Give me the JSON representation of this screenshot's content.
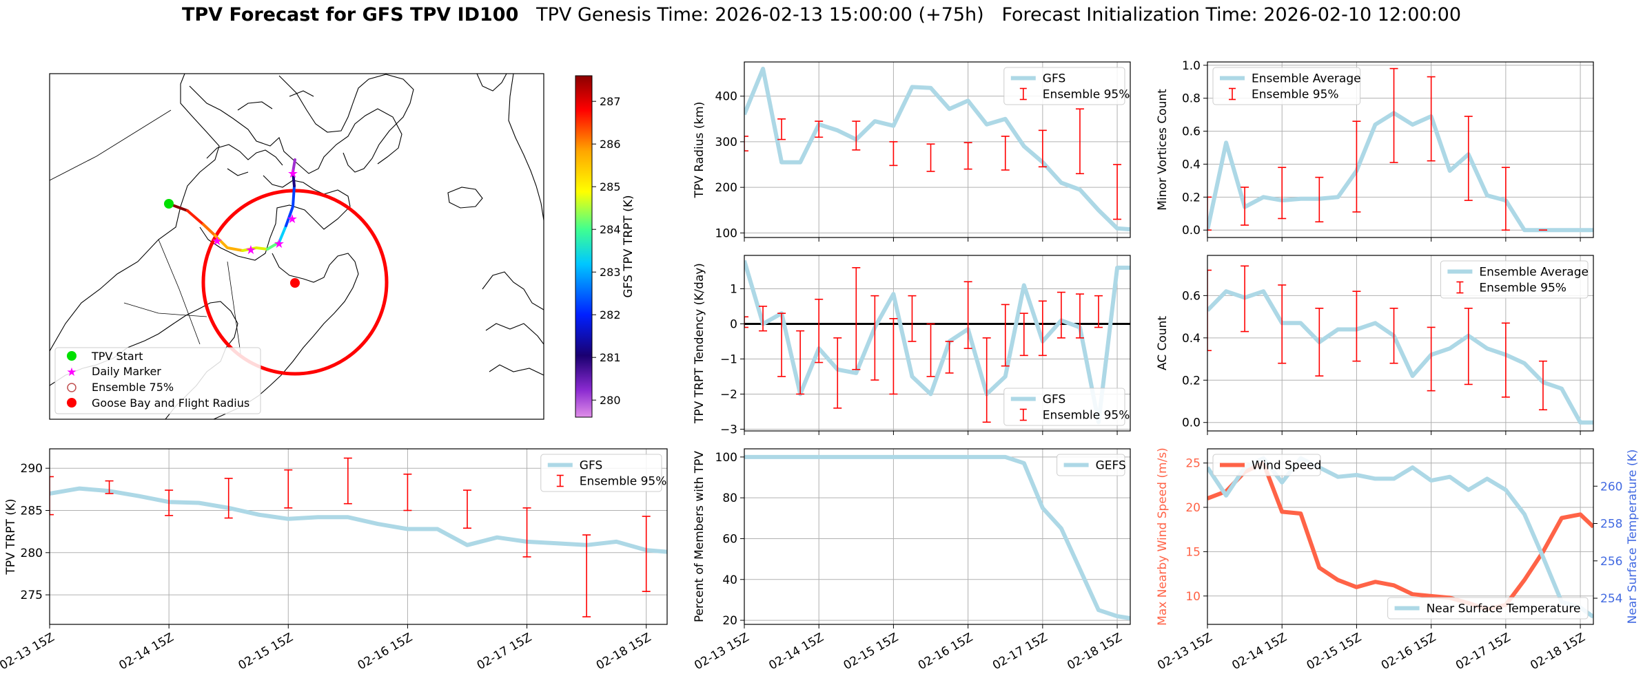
{
  "figure": {
    "title_bold": "TPV Forecast for GFS TPV ID100",
    "title_rest": "   TPV Genesis Time: 2026-02-13 15:00:00 (+75h)   Forecast Initialization Time: 2026-02-10 12:00:00"
  },
  "colors": {
    "gfs_line": "#add8e6",
    "error_bar": "#ff0000",
    "wind": "#ff6347",
    "temp_axis": "#4169e1",
    "grid": "#b0b0b0",
    "circle": "#ff0000"
  },
  "map": {
    "colorbar": {
      "label": "GFS TPV TRPT (K)",
      "ticks": [
        "287",
        "286",
        "285",
        "284",
        "283",
        "282",
        "281",
        "280"
      ],
      "tick_values": [
        287,
        286,
        285,
        284,
        283,
        282,
        281,
        280
      ],
      "vmin": 279.6,
      "vmax": 287.6
    },
    "legend": [
      {
        "label": "TPV Start",
        "symbol": "green-dot"
      },
      {
        "label": "Daily Marker",
        "symbol": "magenta-star"
      },
      {
        "label": "Ensemble 75%",
        "symbol": "hollow-circle"
      },
      {
        "label": "Goose Bay and Flight Radius",
        "symbol": "red-dot"
      }
    ]
  },
  "chart_data": [
    {
      "id": "trpt",
      "type": "line",
      "ylabel": "TPV TRPT (K)",
      "ylim": [
        271.5,
        292.3
      ],
      "yticks": [
        275,
        280,
        285,
        290
      ],
      "xlim": [
        0,
        20.7
      ],
      "xticks": [
        0,
        4,
        8,
        12,
        16,
        20
      ],
      "xticklabels": [
        "02-13 15Z",
        "02-14 15Z",
        "02-15 15Z",
        "02-16 15Z",
        "02-17 15Z",
        "02-18 15Z"
      ],
      "series": [
        {
          "name": "GFS",
          "x": [
            0,
            1,
            2,
            3,
            4,
            5,
            6,
            7,
            8,
            9,
            10,
            11,
            12,
            13,
            14,
            15,
            16,
            17,
            18,
            19,
            20,
            20.7
          ],
          "values": [
            287.0,
            287.6,
            287.3,
            286.7,
            286.0,
            285.9,
            285.3,
            284.5,
            284.0,
            284.2,
            284.2,
            283.4,
            282.8,
            282.8,
            280.9,
            281.8,
            281.3,
            281.1,
            280.9,
            281.3,
            280.3,
            280.1
          ]
        }
      ],
      "errorbars": {
        "name": "Ensemble 95%",
        "x": [
          0,
          2,
          4,
          6,
          8,
          10,
          12,
          14,
          16,
          18,
          20
        ],
        "low": [
          284.5,
          287.0,
          284.4,
          284.1,
          285.3,
          285.8,
          285.0,
          282.9,
          279.5,
          272.4,
          275.4
        ],
        "high": [
          289.0,
          288.5,
          287.4,
          288.8,
          289.8,
          291.2,
          289.3,
          287.4,
          285.3,
          282.1,
          284.3
        ]
      },
      "legend": [
        "GFS",
        "Ensemble 95%"
      ],
      "legend_position": "top-right"
    },
    {
      "id": "radius",
      "type": "line",
      "ylabel": "TPV Radius (km)",
      "ylim": [
        90,
        475
      ],
      "yticks": [
        100,
        200,
        300,
        400
      ],
      "xlim": [
        0,
        20.7
      ],
      "xticks": [
        0,
        4,
        8,
        12,
        16,
        20
      ],
      "xticklabels": [
        "02-13 15Z",
        "02-14 15Z",
        "02-15 15Z",
        "02-16 15Z",
        "02-17 15Z",
        "02-18 15Z"
      ],
      "series": [
        {
          "name": "GFS",
          "x": [
            0,
            1,
            2,
            3,
            4,
            5,
            6,
            7,
            8,
            9,
            10,
            11,
            12,
            13,
            14,
            15,
            16,
            17,
            18,
            19,
            20,
            20.7
          ],
          "values": [
            360,
            460,
            255,
            255,
            338,
            325,
            305,
            345,
            335,
            420,
            418,
            372,
            390,
            338,
            350,
            290,
            255,
            210,
            195,
            150,
            110,
            108
          ]
        }
      ],
      "errorbars": {
        "name": "Ensemble 95%",
        "x": [
          0,
          2,
          4,
          6,
          8,
          10,
          12,
          14,
          16,
          18,
          20
        ],
        "low": [
          280,
          305,
          310,
          282,
          248,
          235,
          240,
          238,
          245,
          230,
          130
        ],
        "high": [
          312,
          350,
          345,
          345,
          300,
          295,
          298,
          312,
          325,
          372,
          250
        ]
      },
      "legend": [
        "GFS",
        "Ensemble 95%"
      ],
      "legend_position": "top-right"
    },
    {
      "id": "tendency",
      "type": "line",
      "ylabel": "TPV TRPT Tendency (K/day)",
      "ylim": [
        -3.05,
        1.95
      ],
      "yticks": [
        -3,
        -2,
        -1,
        0,
        1
      ],
      "zero_line": true,
      "xlim": [
        0,
        20.7
      ],
      "xticks": [
        0,
        4,
        8,
        12,
        16,
        20
      ],
      "xticklabels": [
        "02-13 15Z",
        "02-14 15Z",
        "02-15 15Z",
        "02-16 15Z",
        "02-17 15Z",
        "02-18 15Z"
      ],
      "series": [
        {
          "name": "GFS",
          "x": [
            0,
            1,
            2,
            3,
            4,
            5,
            6,
            7,
            8,
            9,
            10,
            11,
            12,
            13,
            14,
            15,
            16,
            17,
            18,
            19,
            20,
            20.7
          ],
          "values": [
            1.8,
            0.0,
            0.3,
            -2.0,
            -0.7,
            -1.3,
            -1.4,
            -0.1,
            0.85,
            -1.5,
            -2.0,
            -0.5,
            -0.15,
            -2.0,
            -1.5,
            1.1,
            -0.5,
            0.1,
            -0.1,
            -2.8,
            1.6,
            1.6
          ]
        }
      ],
      "errorbars": {
        "name": "Ensemble 95%",
        "x": [
          0,
          1,
          2,
          3,
          4,
          5,
          6,
          7,
          8,
          9,
          10,
          11,
          12,
          13,
          14,
          15,
          16,
          17,
          18,
          19
        ],
        "low": [
          -0.1,
          -0.2,
          -1.5,
          -2.0,
          -1.1,
          -2.4,
          -1.3,
          -1.6,
          -2.0,
          -0.5,
          -1.5,
          -1.4,
          -0.7,
          -2.8,
          -1.2,
          -0.9,
          -0.9,
          -0.4,
          -0.4,
          -0.1
        ],
        "high": [
          0.2,
          0.5,
          0.3,
          -0.2,
          0.7,
          -0.4,
          1.6,
          0.8,
          0.15,
          0.8,
          0.0,
          -0.5,
          1.2,
          -0.4,
          0.55,
          0.3,
          0.65,
          0.9,
          0.85,
          0.8
        ]
      },
      "legend": [
        "GFS",
        "Ensemble 95%"
      ],
      "legend_position": "bottom-right"
    },
    {
      "id": "members",
      "type": "line",
      "ylabel": "Percent of Members with TPV",
      "ylim": [
        18,
        104
      ],
      "yticks": [
        20,
        40,
        60,
        80,
        100
      ],
      "xlim": [
        0,
        20.7
      ],
      "xticks": [
        0,
        4,
        8,
        12,
        16,
        20
      ],
      "xticklabels": [
        "02-13 15Z",
        "02-14 15Z",
        "02-15 15Z",
        "02-16 15Z",
        "02-17 15Z",
        "02-18 15Z"
      ],
      "series": [
        {
          "name": "GEFS",
          "x": [
            0,
            1,
            2,
            3,
            4,
            5,
            6,
            7,
            8,
            9,
            10,
            11,
            12,
            13,
            14,
            15,
            16,
            17,
            18,
            19,
            20,
            20.7
          ],
          "values": [
            100,
            100,
            100,
            100,
            100,
            100,
            100,
            100,
            100,
            100,
            100,
            100,
            100,
            100,
            100,
            97,
            75,
            65,
            45,
            25,
            22,
            21
          ]
        }
      ],
      "legend": [
        "GEFS"
      ],
      "legend_position": "top-right"
    },
    {
      "id": "minor_vortices",
      "type": "line",
      "ylabel": "Minor Vortices Count",
      "ylim": [
        -0.045,
        1.02
      ],
      "yticks": [
        0.0,
        0.2,
        0.4,
        0.6,
        0.8,
        1.0
      ],
      "xlim": [
        0,
        20.7
      ],
      "xticks": [
        0,
        4,
        8,
        12,
        16,
        20
      ],
      "xticklabels": [
        "02-13 15Z",
        "02-14 15Z",
        "02-15 15Z",
        "02-16 15Z",
        "02-17 15Z",
        "02-18 15Z"
      ],
      "series": [
        {
          "name": "Ensemble Average",
          "x": [
            0,
            1,
            2,
            3,
            4,
            5,
            6,
            7,
            8,
            9,
            10,
            11,
            12,
            13,
            14,
            15,
            16,
            17,
            18,
            19,
            20,
            20.7
          ],
          "values": [
            0.0,
            0.53,
            0.14,
            0.2,
            0.18,
            0.19,
            0.19,
            0.2,
            0.36,
            0.64,
            0.71,
            0.64,
            0.69,
            0.36,
            0.46,
            0.21,
            0.18,
            0.0,
            0.0,
            0.0,
            0.0,
            0.0
          ]
        }
      ],
      "errorbars": {
        "name": "Ensemble 95%",
        "x": [
          0,
          2,
          4,
          6,
          8,
          10,
          12,
          14,
          16,
          18
        ],
        "low": [
          0.0,
          0.03,
          0.07,
          0.05,
          0.11,
          0.41,
          0.42,
          0.18,
          0.0,
          0.0
        ],
        "high": [
          0.2,
          0.26,
          0.38,
          0.32,
          0.66,
          0.98,
          0.93,
          0.69,
          0.38,
          0.0
        ]
      },
      "legend": [
        "Ensemble Average",
        "Ensemble 95%"
      ],
      "legend_position": "top-left"
    },
    {
      "id": "ac_count",
      "type": "line",
      "ylabel": "AC Count",
      "ylim": [
        -0.04,
        0.79
      ],
      "yticks": [
        0.0,
        0.2,
        0.4,
        0.6
      ],
      "xlim": [
        0,
        20.7
      ],
      "xticks": [
        0,
        4,
        8,
        12,
        16,
        20
      ],
      "xticklabels": [
        "02-13 15Z",
        "02-14 15Z",
        "02-15 15Z",
        "02-16 15Z",
        "02-17 15Z",
        "02-18 15Z"
      ],
      "series": [
        {
          "name": "Ensemble Average",
          "x": [
            0,
            1,
            2,
            3,
            4,
            5,
            6,
            7,
            8,
            9,
            10,
            11,
            12,
            13,
            14,
            15,
            16,
            17,
            18,
            19,
            20,
            20.7
          ],
          "values": [
            0.53,
            0.62,
            0.59,
            0.62,
            0.47,
            0.47,
            0.38,
            0.44,
            0.44,
            0.47,
            0.41,
            0.22,
            0.32,
            0.35,
            0.41,
            0.35,
            0.32,
            0.28,
            0.19,
            0.16,
            0.0,
            0.0
          ]
        }
      ],
      "errorbars": {
        "name": "Ensemble 95%",
        "x": [
          0,
          2,
          4,
          6,
          8,
          10,
          12,
          14,
          16,
          18
        ],
        "low": [
          0.34,
          0.43,
          0.28,
          0.22,
          0.29,
          0.28,
          0.15,
          0.18,
          0.12,
          0.06
        ],
        "high": [
          0.72,
          0.74,
          0.65,
          0.54,
          0.62,
          0.54,
          0.45,
          0.54,
          0.47,
          0.29
        ]
      },
      "legend": [
        "Ensemble Average",
        "Ensemble 95%"
      ],
      "legend_position": "top-right"
    },
    {
      "id": "wind_temp",
      "type": "line",
      "ylabel": "Max Nearby Wind Speed (m/s)",
      "ylabel_right": "Near Surface Temperature (K)",
      "ylim": [
        6.8,
        26.6
      ],
      "yticks": [
        10,
        15,
        20,
        25
      ],
      "ylim_right": [
        252.6,
        262.0
      ],
      "yticks_right": [
        254,
        256,
        258,
        260
      ],
      "xlim": [
        0,
        20.7
      ],
      "xticks": [
        0,
        4,
        8,
        12,
        16,
        20
      ],
      "xticklabels": [
        "02-13 15Z",
        "02-14 15Z",
        "02-15 15Z",
        "02-16 15Z",
        "02-17 15Z",
        "02-18 15Z"
      ],
      "series": [
        {
          "name": "Wind Speed",
          "axis": "left",
          "x": [
            0,
            1,
            2,
            3,
            4,
            5,
            6,
            7,
            8,
            9,
            10,
            11,
            12,
            13,
            14,
            15,
            16,
            17,
            18,
            19,
            20,
            20.7
          ],
          "values": [
            21.0,
            21.8,
            24.0,
            25.0,
            19.5,
            19.3,
            13.2,
            11.8,
            11.0,
            11.6,
            11.2,
            10.2,
            10.0,
            9.8,
            9.2,
            8.5,
            9.0,
            11.8,
            15.0,
            18.8,
            19.2,
            17.8
          ]
        },
        {
          "name": "Near Surface Temperature",
          "axis": "right",
          "x": [
            0,
            1,
            2,
            3,
            4,
            5,
            6,
            7,
            8,
            9,
            10,
            11,
            12,
            13,
            14,
            15,
            16,
            17,
            18,
            19,
            20,
            20.7
          ],
          "values": [
            261.0,
            259.5,
            261.0,
            261.5,
            260.2,
            261.5,
            261.0,
            260.5,
            260.6,
            260.4,
            260.4,
            261.0,
            260.3,
            260.5,
            259.8,
            260.4,
            259.8,
            258.5,
            256.2,
            253.8,
            253.5,
            253.0
          ]
        }
      ],
      "legend": [
        "Wind Speed",
        "Near Surface Temperature"
      ],
      "legend_position": "top-left / bottom-right"
    }
  ]
}
